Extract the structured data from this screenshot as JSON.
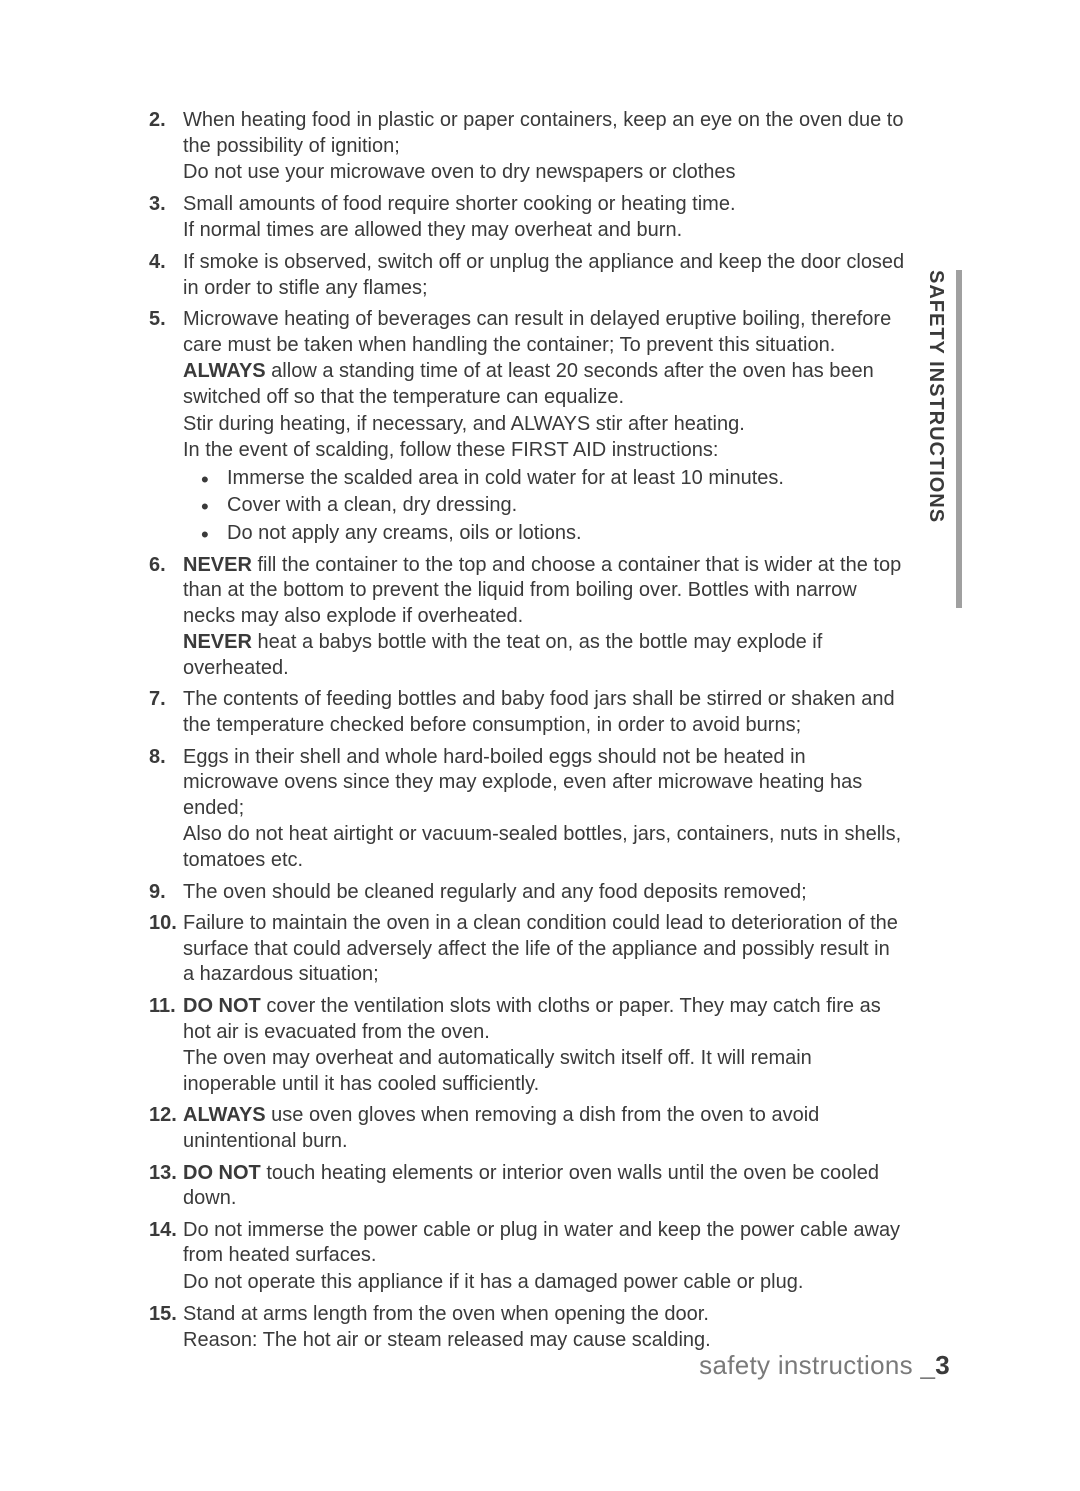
{
  "sideTab": "SAFETY INSTRUCTIONS",
  "footer": {
    "label": "safety instructions _",
    "page": "3"
  },
  "items": [
    {
      "num": "2.",
      "paras": [
        {
          "runs": [
            {
              "t": "When heating food in plastic or paper containers, keep an eye on the oven due to the possibility of ignition;"
            }
          ]
        },
        {
          "runs": [
            {
              "t": "Do not use your microwave oven to dry newspapers or clothes"
            }
          ]
        }
      ]
    },
    {
      "num": "3.",
      "paras": [
        {
          "runs": [
            {
              "t": "Small amounts of food require shorter cooking or heating time."
            }
          ]
        },
        {
          "runs": [
            {
              "t": "If normal times are allowed they may overheat and burn."
            }
          ]
        }
      ]
    },
    {
      "num": "4.",
      "paras": [
        {
          "runs": [
            {
              "t": "If smoke is observed, switch off or unplug the appliance and keep the door closed in order to stifle any flames;"
            }
          ]
        }
      ]
    },
    {
      "num": "5.",
      "paras": [
        {
          "runs": [
            {
              "t": "Microwave heating of beverages can result in delayed eruptive boiling, therefore care must be taken when handling the container; To prevent this situation."
            }
          ]
        },
        {
          "runs": [
            {
              "t": "ALWAYS",
              "b": true
            },
            {
              "t": " allow a standing time of at least 20 seconds after the oven has been switched off so that the temperature can equalize."
            }
          ]
        },
        {
          "runs": [
            {
              "t": "Stir during heating, if necessary, and ALWAYS stir after heating."
            }
          ]
        },
        {
          "runs": [
            {
              "t": "In the event of scalding, follow these FIRST AID instructions:"
            }
          ]
        }
      ],
      "sub": [
        "Immerse the scalded area in cold water for at least 10 minutes.",
        "Cover with a clean, dry dressing.",
        "Do not apply any creams, oils or lotions."
      ]
    },
    {
      "num": "6.",
      "paras": [
        {
          "runs": [
            {
              "t": "NEVER",
              "b": true
            },
            {
              "t": " fill the container to the top and choose a container that is wider at the top than at the bottom to prevent the liquid from boiling over. Bottles with narrow necks may also explode if overheated."
            }
          ]
        },
        {
          "runs": [
            {
              "t": "NEVER",
              "b": true
            },
            {
              "t": " heat a babys bottle with the teat on, as the bottle may explode if overheated."
            }
          ]
        }
      ]
    },
    {
      "num": "7.",
      "paras": [
        {
          "runs": [
            {
              "t": "The contents of feeding bottles and baby food jars shall be stirred or shaken and the temperature checked before consumption, in order to avoid burns;"
            }
          ]
        }
      ]
    },
    {
      "num": "8.",
      "paras": [
        {
          "runs": [
            {
              "t": "Eggs in their shell and whole hard-boiled eggs should not be heated in microwave ovens since they may explode, even after microwave heating has ended;"
            }
          ]
        },
        {
          "runs": [
            {
              "t": "Also do not heat airtight or vacuum-sealed bottles, jars, containers, nuts in shells, tomatoes etc."
            }
          ]
        }
      ]
    },
    {
      "num": "9.",
      "paras": [
        {
          "runs": [
            {
              "t": "The oven should be cleaned regularly and any food deposits removed;"
            }
          ]
        }
      ]
    },
    {
      "num": "10.",
      "paras": [
        {
          "runs": [
            {
              "t": "Failure to maintain the oven in a clean condition could lead to deterioration of the surface that could adversely affect the life of the appliance and possibly result in a hazardous situation;"
            }
          ]
        }
      ]
    },
    {
      "num": "11.",
      "paras": [
        {
          "runs": [
            {
              "t": "DO NOT",
              "b": true
            },
            {
              "t": " cover the ventilation slots with cloths or paper. They may catch fire as hot air is evacuated from the oven."
            }
          ]
        },
        {
          "runs": [
            {
              "t": "The oven may overheat and automatically switch itself off. It will remain inoperable until it has cooled sufficiently."
            }
          ]
        }
      ]
    },
    {
      "num": "12.",
      "paras": [
        {
          "runs": [
            {
              "t": "ALWAYS",
              "b": true
            },
            {
              "t": " use oven gloves when removing a dish from the oven to avoid unintentional burn."
            }
          ]
        }
      ]
    },
    {
      "num": "13.",
      "paras": [
        {
          "runs": [
            {
              "t": "DO NOT",
              "b": true
            },
            {
              "t": " touch heating elements or interior oven walls until the oven be cooled down."
            }
          ]
        }
      ]
    },
    {
      "num": "14.",
      "paras": [
        {
          "runs": [
            {
              "t": "Do not immerse the power cable or plug in water and keep the power cable away from heated surfaces."
            }
          ]
        },
        {
          "runs": [
            {
              "t": "Do not operate this appliance if it has a damaged power cable or plug."
            }
          ]
        }
      ]
    },
    {
      "num": "15.",
      "paras": [
        {
          "runs": [
            {
              "t": "Stand at arms length from the oven when opening the door."
            }
          ]
        },
        {
          "runs": [
            {
              "t": "Reason: The hot air or steam released may cause scalding."
            }
          ]
        }
      ]
    }
  ]
}
